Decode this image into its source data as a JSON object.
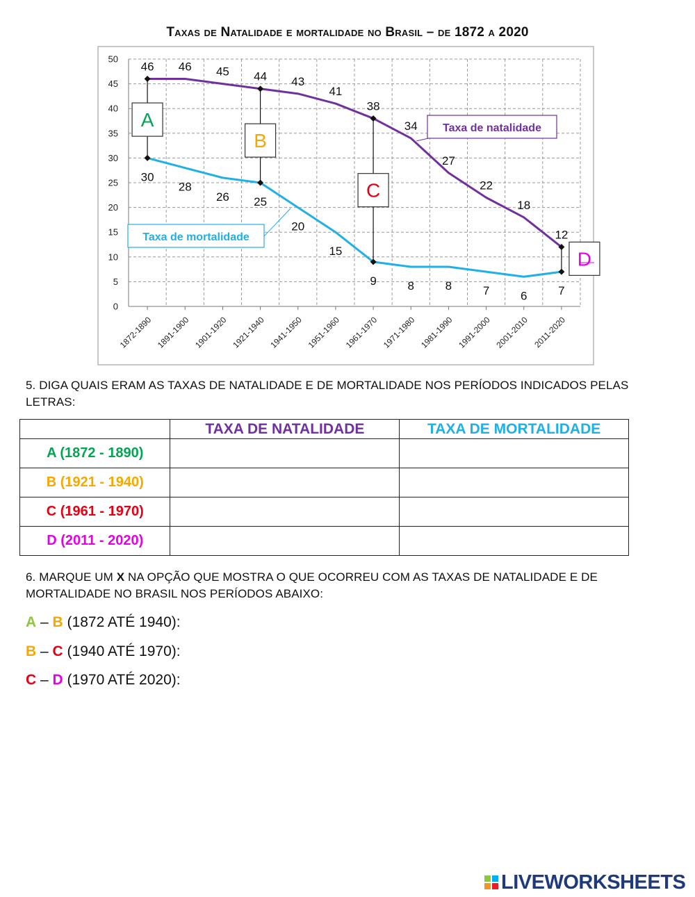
{
  "chart_data": {
    "type": "line",
    "title": "Taxas de Natalidade e mortalidade no Brasil – de 1872 a 2020",
    "categories": [
      "1872-1890",
      "1891-1900",
      "1901-1920",
      "1921-1940",
      "1941-1950",
      "1951-1960",
      "1961-1970",
      "1971-1980",
      "1981-1990",
      "1991-2000",
      "2001-2010",
      "2011-2020"
    ],
    "ylim": [
      0,
      50
    ],
    "yticks": [
      0,
      5,
      10,
      15,
      20,
      25,
      30,
      35,
      40,
      45,
      50
    ],
    "grid": true,
    "series": [
      {
        "name": "Taxa de natalidade",
        "color": "#7030a0",
        "values": [
          46,
          46,
          45,
          44,
          43,
          41,
          38,
          34,
          27,
          22,
          18,
          12
        ],
        "labels": [
          "46",
          "46",
          "45",
          "44",
          "43",
          "41",
          "38",
          "34",
          "27",
          "22",
          "18",
          "12"
        ]
      },
      {
        "name": "Taxa de mortalidade",
        "color": "#1fb0e6",
        "values": [
          30,
          28,
          26,
          25,
          20,
          15,
          9,
          8,
          8,
          7,
          6,
          7
        ],
        "labels": [
          "30",
          "28",
          "26",
          "25",
          "20",
          "15",
          "9",
          "8",
          "8",
          "7",
          "6",
          "7"
        ]
      }
    ],
    "markers": [
      {
        "letter": "A",
        "color": "#00a651",
        "category": "1872-1890",
        "top": 46,
        "bottom": 30
      },
      {
        "letter": "B",
        "color": "#f5a800",
        "category": "1921-1940",
        "top": 44,
        "bottom": 25
      },
      {
        "letter": "C",
        "color": "#e60012",
        "category": "1961-1970",
        "top": 38,
        "bottom": 9
      },
      {
        "letter": "D",
        "color": "#e600e6",
        "category": "2011-2020",
        "top": 12,
        "bottom": 7
      }
    ]
  },
  "question5": {
    "text": "5. DIGA QUAIS ERAM AS TAXAS DE NATALIDADE E DE MORTALIDADE NOS PERÍODOS INDICADOS PELAS LETRAS:"
  },
  "table": {
    "header_natalidade": "TAXA DE NATALIDADE",
    "header_mortalidade": "TAXA DE MORTALIDADE",
    "colors": {
      "natalidade": "#7030a0",
      "mortalidade": "#1fb0e6"
    },
    "rows": [
      {
        "label": "A (1872 - 1890)",
        "color": "#00a651"
      },
      {
        "label": "B (1921 - 1940)",
        "color": "#f5a800"
      },
      {
        "label": "C (1961 - 1970)",
        "color": "#e60012"
      },
      {
        "label": "D (2011 - 2020)",
        "color": "#e600e6"
      }
    ]
  },
  "question6": {
    "text_before": "6. MARQUE UM ",
    "text_bold": "X",
    "text_after": " NA OPÇÃO QUE MOSTRA O QUE OCORREU COM AS TAXAS DE NATALIDADE E DE MORTALIDADE  NO BRASIL NOS PERÍODOS ABAIXO:"
  },
  "options": [
    {
      "l1": "A",
      "c1": "#8dc63f",
      "sep": " – ",
      "l2": "B",
      "c2": "#f5a800",
      "text": " (1872 ATÉ 1940):"
    },
    {
      "l1": "B",
      "c1": "#f5a800",
      "sep": " – ",
      "l2": "C",
      "c2": "#e60012",
      "text": " (1940 ATÉ 1970):"
    },
    {
      "l1": "C",
      "c1": "#e60012",
      "sep": " – ",
      "l2": "D",
      "c2": "#e600e6",
      "text": " (1970 ATÉ 2020):"
    }
  ],
  "brand": {
    "text": "LIVEWORKSHEETS",
    "badge": [
      "L",
      "I",
      "V",
      "E"
    ]
  }
}
